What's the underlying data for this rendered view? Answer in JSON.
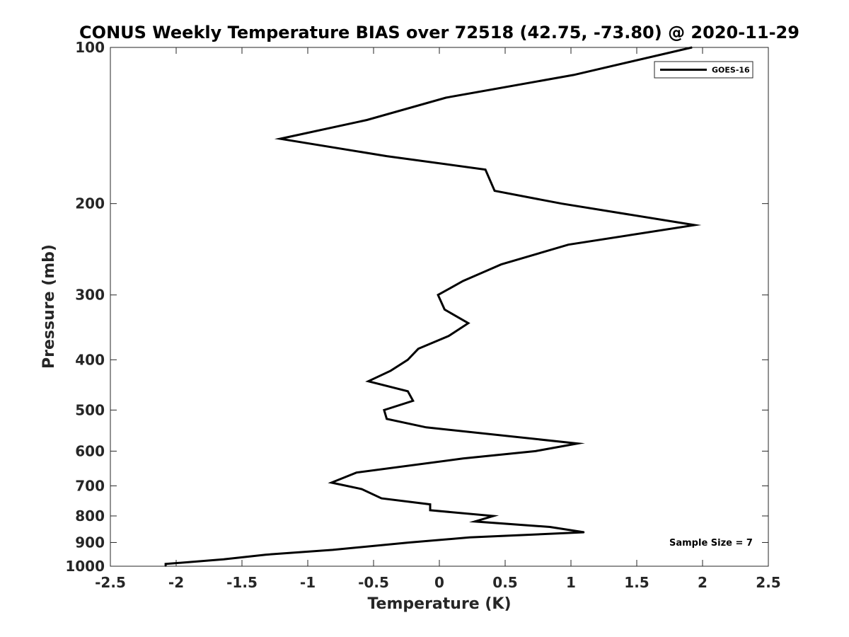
{
  "chart_data": {
    "type": "line",
    "title": "CONUS Weekly Temperature BIAS over 72518 (42.75, -73.80) @ 2020-11-29",
    "xlabel": "Temperature (K)",
    "ylabel": "Pressure (mb)",
    "xlim": [
      -2.5,
      2.5
    ],
    "ylim": [
      1000,
      100
    ],
    "yscale": "log",
    "y_reversed": true,
    "grid": false,
    "legend_position": "top-right",
    "xticks": [
      "-2.5",
      "-2",
      "-1.5",
      "-1",
      "-0.5",
      "0",
      "0.5",
      "1",
      "1.5",
      "2",
      "2.5"
    ],
    "xtick_values": [
      -2.5,
      -2,
      -1.5,
      -1,
      -0.5,
      0,
      0.5,
      1,
      1.5,
      2,
      2.5
    ],
    "yticks": [
      "100",
      "200",
      "300",
      "400",
      "500",
      "600",
      "700",
      "800",
      "900",
      "1000"
    ],
    "ytick_values": [
      100,
      200,
      300,
      400,
      500,
      600,
      700,
      800,
      900,
      1000
    ],
    "series": [
      {
        "name": "GOES-16",
        "color": "#000000",
        "points": [
          {
            "x": 1.92,
            "y": 100
          },
          {
            "x": 1.02,
            "y": 113
          },
          {
            "x": 0.05,
            "y": 125
          },
          {
            "x": -0.55,
            "y": 138
          },
          {
            "x": -1.21,
            "y": 150
          },
          {
            "x": -0.4,
            "y": 162
          },
          {
            "x": 0.35,
            "y": 172
          },
          {
            "x": 0.42,
            "y": 189
          },
          {
            "x": 0.93,
            "y": 200
          },
          {
            "x": 1.94,
            "y": 220
          },
          {
            "x": 0.98,
            "y": 240
          },
          {
            "x": 0.47,
            "y": 262
          },
          {
            "x": 0.18,
            "y": 282
          },
          {
            "x": -0.01,
            "y": 300
          },
          {
            "x": 0.04,
            "y": 320
          },
          {
            "x": 0.22,
            "y": 340
          },
          {
            "x": 0.07,
            "y": 360
          },
          {
            "x": -0.16,
            "y": 381
          },
          {
            "x": -0.24,
            "y": 400
          },
          {
            "x": -0.37,
            "y": 420
          },
          {
            "x": -0.54,
            "y": 440
          },
          {
            "x": -0.24,
            "y": 460
          },
          {
            "x": -0.2,
            "y": 480
          },
          {
            "x": -0.42,
            "y": 500
          },
          {
            "x": -0.4,
            "y": 520
          },
          {
            "x": -0.1,
            "y": 540
          },
          {
            "x": 1.05,
            "y": 580
          },
          {
            "x": 0.73,
            "y": 600
          },
          {
            "x": 0.18,
            "y": 620
          },
          {
            "x": -0.63,
            "y": 660
          },
          {
            "x": -0.82,
            "y": 690
          },
          {
            "x": -0.59,
            "y": 710
          },
          {
            "x": -0.44,
            "y": 740
          },
          {
            "x": -0.07,
            "y": 760
          },
          {
            "x": -0.07,
            "y": 780
          },
          {
            "x": 0.41,
            "y": 800
          },
          {
            "x": 0.27,
            "y": 820
          },
          {
            "x": 0.84,
            "y": 840
          },
          {
            "x": 1.1,
            "y": 860
          },
          {
            "x": 0.23,
            "y": 880
          },
          {
            "x": -0.23,
            "y": 900
          },
          {
            "x": -0.81,
            "y": 930
          },
          {
            "x": -1.32,
            "y": 950
          },
          {
            "x": -1.64,
            "y": 970
          },
          {
            "x": -2.08,
            "y": 990
          },
          {
            "x": -2.08,
            "y": 1000
          }
        ]
      }
    ],
    "annotations": [
      {
        "text": "Sample Size = 7",
        "position": "bottom-right"
      }
    ]
  }
}
